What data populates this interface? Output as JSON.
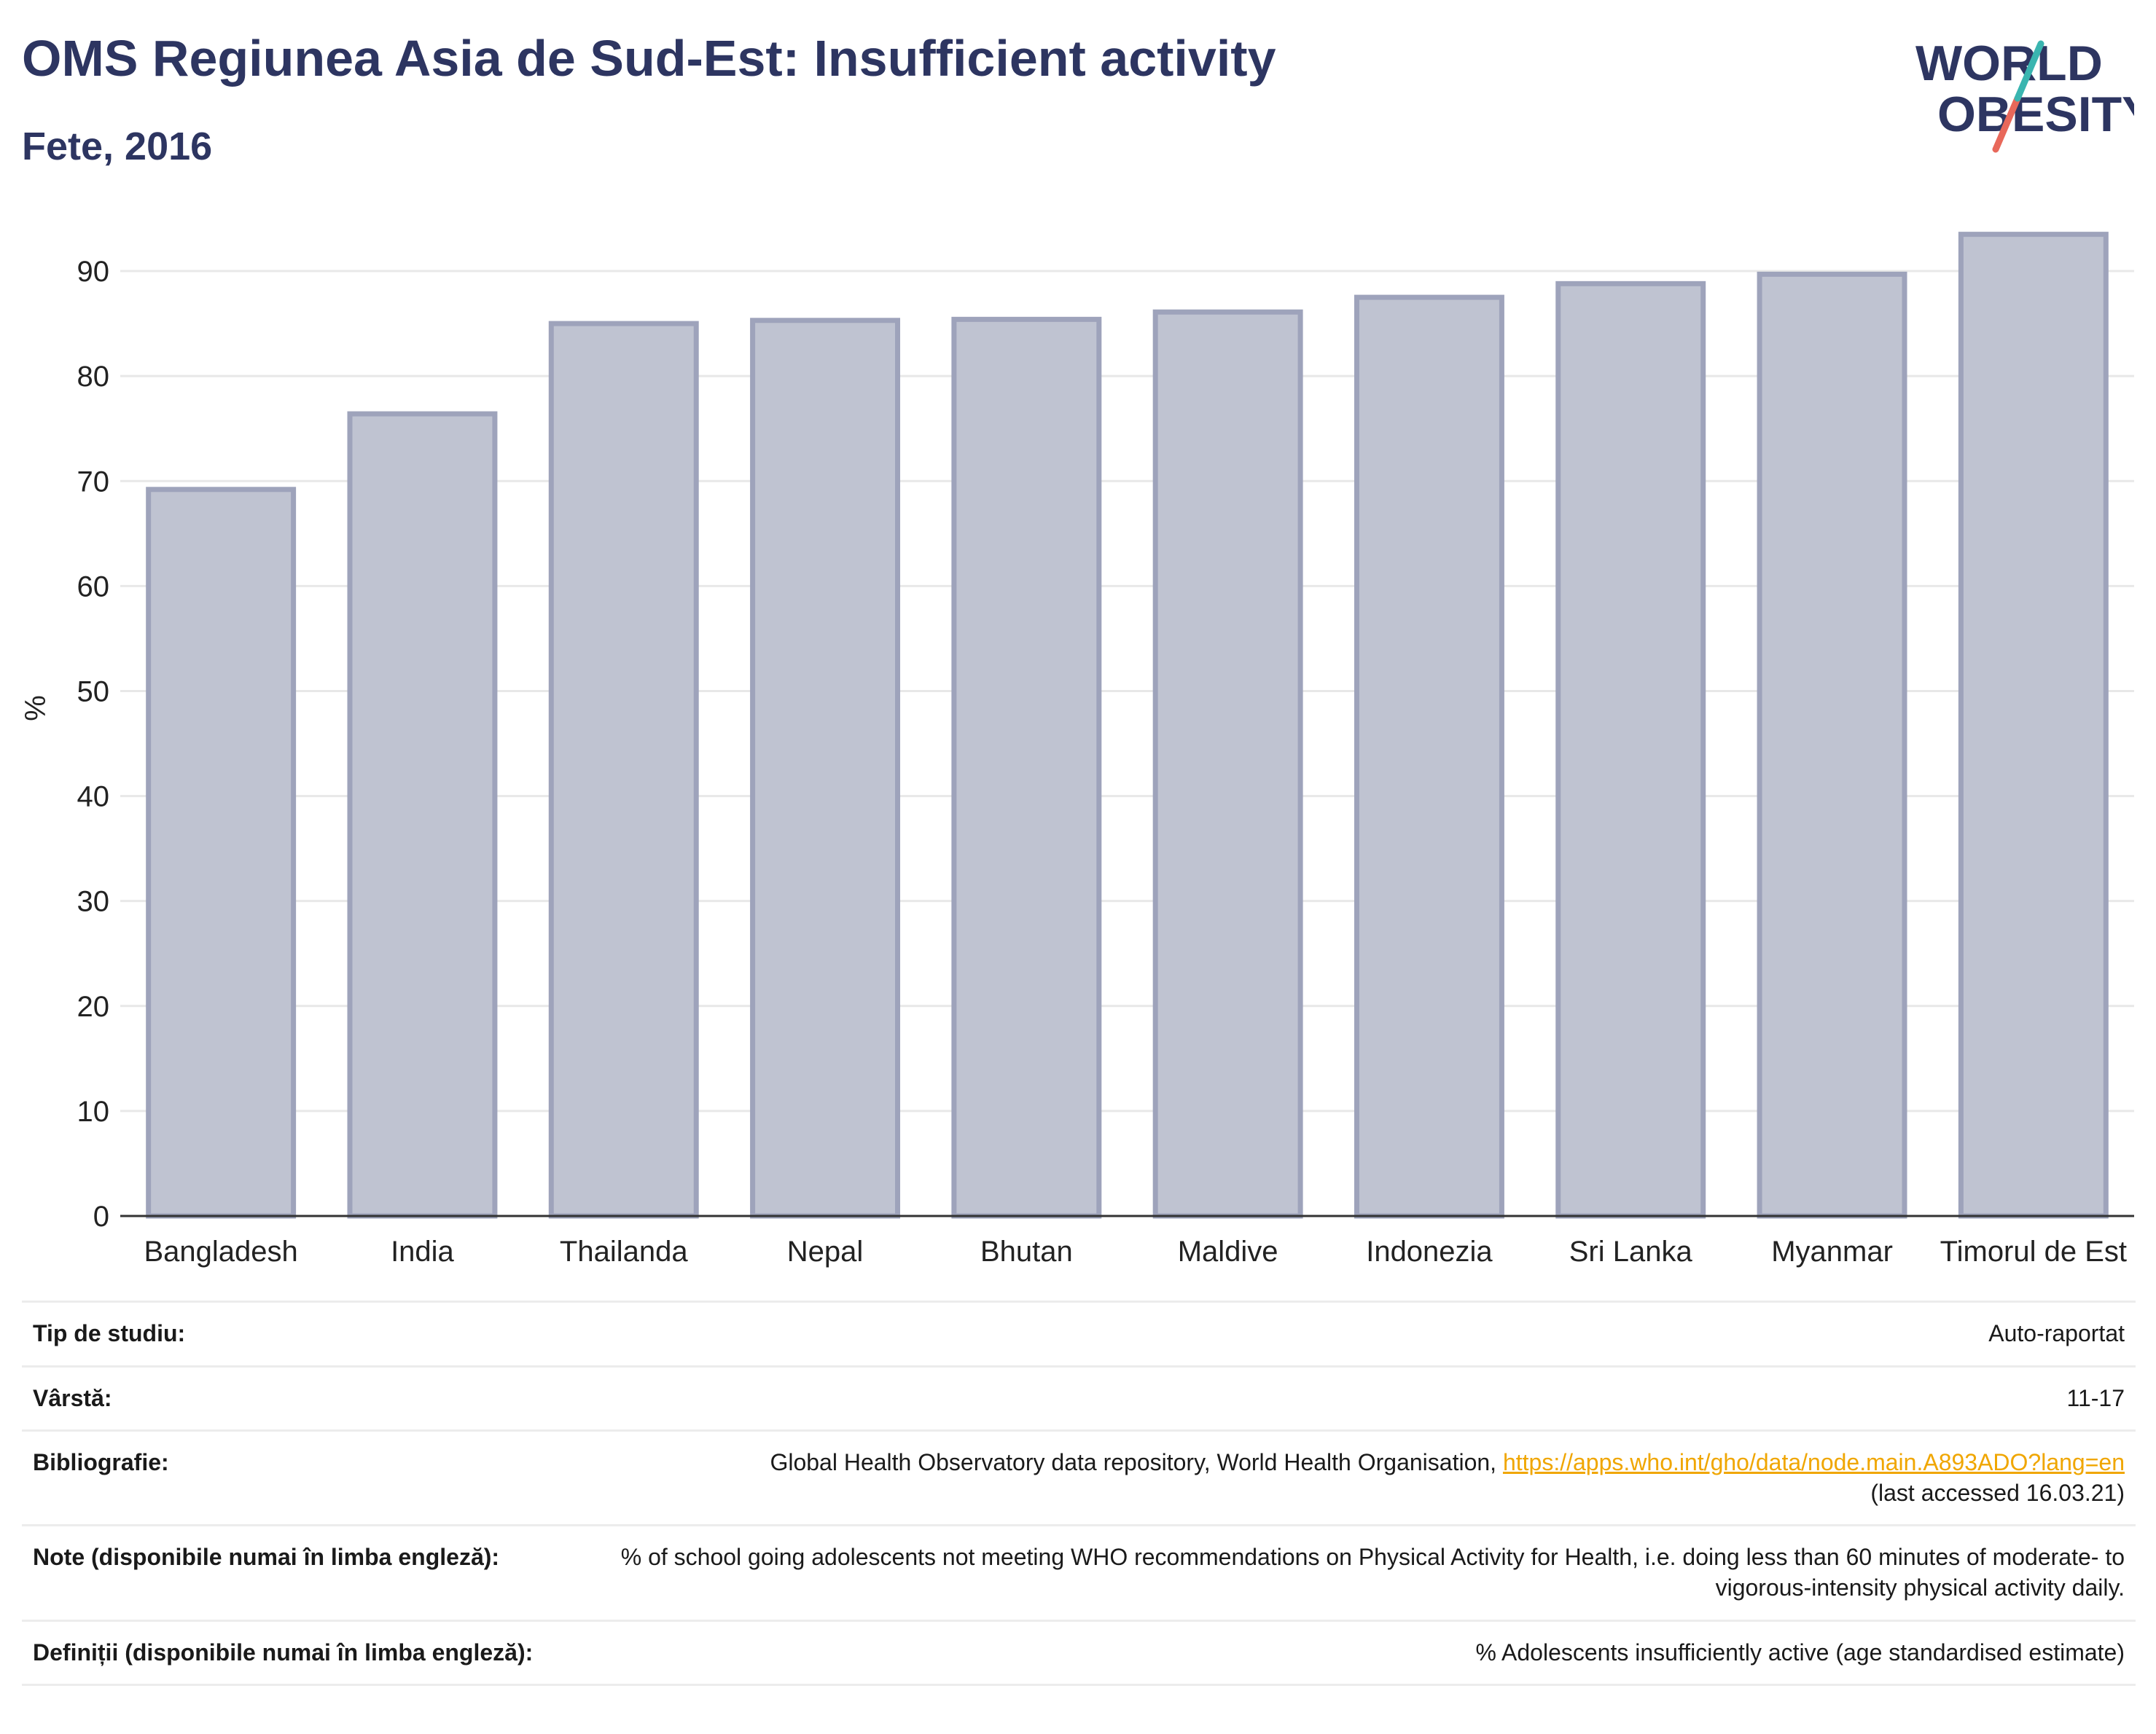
{
  "header": {
    "title": "OMS Regiunea Asia de Sud-Est: Insufficient activity",
    "subtitle": "Fete, 2016"
  },
  "logo": {
    "line1": "WORLD",
    "line2": "OBESITY"
  },
  "colors": {
    "bar_fill": "#bfc3d1",
    "bar_stroke": "#9ea3bb",
    "title": "#2d3561",
    "link": "#f0a600",
    "logo_teal": "#3ab5b0",
    "logo_coral": "#e8685a"
  },
  "chart_data": {
    "type": "bar",
    "categories": [
      "Bangladesh",
      "India",
      "Thailanda",
      "Nepal",
      "Bhutan",
      "Maldive",
      "Indonezia",
      "Sri Lanka",
      "Myanmar",
      "Timorul de Est"
    ],
    "values": [
      69.2,
      76.4,
      85.0,
      85.3,
      85.4,
      86.1,
      87.5,
      88.8,
      89.7,
      93.5
    ],
    "ylabel": "%",
    "ylim": [
      0,
      95
    ],
    "yticks": [
      0,
      10,
      20,
      30,
      40,
      50,
      60,
      70,
      80,
      90
    ],
    "grid": true
  },
  "meta": [
    {
      "label": "Tip de studiu:",
      "value": "Auto-raportat"
    },
    {
      "label": "Vârstă:",
      "value": "11-17"
    },
    {
      "label": "Bibliografie:",
      "value": "Global Health Observatory data repository, World Health Organisation, ",
      "link": "https://apps.who.int/gho/data/node.main.A893ADO?lang=en",
      "value2": "(last accessed 16.03.21)"
    },
    {
      "label": "Note (disponibile numai în limba engleză):",
      "value": "% of school going adolescents not meeting WHO recommendations on Physical Activity for Health, i.e. doing less than 60 minutes of moderate- to vigorous-intensity physical activity daily."
    },
    {
      "label": "Definiții (disponibile numai în limba engleză):",
      "value": "% Adolescents insufficiently active (age standardised estimate)"
    }
  ]
}
